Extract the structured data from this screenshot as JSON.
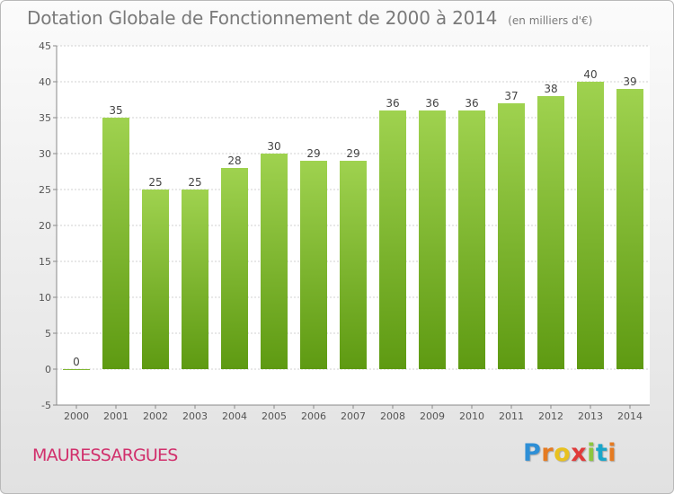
{
  "header": {
    "title": "Dotation Globale de Fonctionnement de 2000 à 2014",
    "subtitle": "(en milliers d'€)"
  },
  "commune": "MAURESSARGUES",
  "logo": {
    "text": "Proxiti",
    "letter_colors": [
      "#2e8fd6",
      "#e57b22",
      "#e8c11f",
      "#e03a3a",
      "#8cc63f",
      "#1aa6c9",
      "#e57b22"
    ]
  },
  "chart_data": {
    "type": "bar",
    "categories": [
      "2000",
      "2001",
      "2002",
      "2003",
      "2004",
      "2005",
      "2006",
      "2007",
      "2008",
      "2009",
      "2010",
      "2011",
      "2012",
      "2013",
      "2014"
    ],
    "values": [
      0,
      35,
      25,
      25,
      28,
      30,
      29,
      29,
      36,
      36,
      36,
      37,
      38,
      40,
      39
    ],
    "title": "Dotation Globale de Fonctionnement de 2000 à 2014",
    "subtitle": "(en milliers d'€)",
    "ylim": [
      -5,
      45
    ],
    "yticks": [
      -5,
      0,
      5,
      10,
      15,
      20,
      25,
      30,
      35,
      40,
      45
    ],
    "grid": "horizontal",
    "bar_color_top": "#9fd24f",
    "bar_color_bottom": "#5e9a12"
  }
}
